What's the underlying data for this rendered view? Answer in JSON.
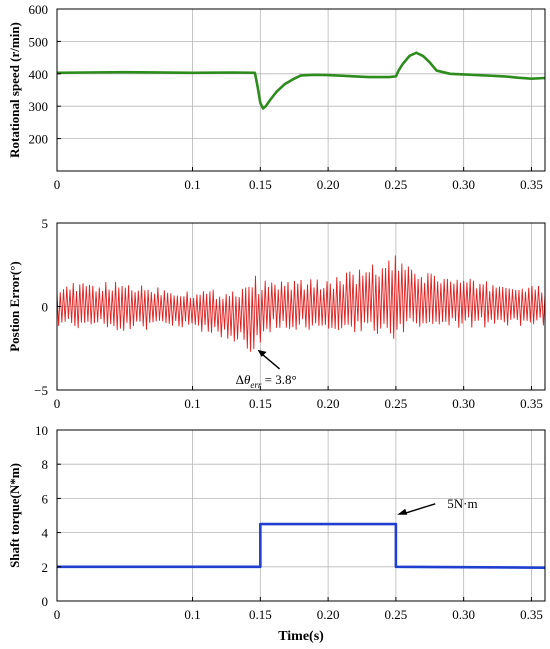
{
  "chart_data": [
    {
      "type": "line",
      "ylabel": "Rotational speed (r/min)",
      "xlabel": "",
      "xlim": [
        0,
        0.36
      ],
      "ylim": [
        100,
        600
      ],
      "xticks": [
        "0",
        "0.1",
        "0.15",
        "0.20",
        "0.25",
        "0.30",
        "0.35"
      ],
      "xtick_values": [
        0,
        0.1,
        0.15,
        0.2,
        0.25,
        0.3,
        0.35
      ],
      "yticks": [
        "200",
        "300",
        "400",
        "500",
        "600"
      ],
      "ytick_values": [
        200,
        300,
        400,
        500,
        600
      ],
      "grid": true,
      "color": "#2e8b1e",
      "series": [
        {
          "x": [
            0,
            0.02,
            0.05,
            0.1,
            0.13,
            0.146,
            0.148,
            0.15,
            0.152,
            0.154,
            0.157,
            0.162,
            0.168,
            0.175,
            0.18,
            0.19,
            0.2,
            0.21,
            0.22,
            0.23,
            0.24,
            0.245,
            0.25,
            0.252,
            0.255,
            0.26,
            0.265,
            0.27,
            0.275,
            0.28,
            0.29,
            0.3,
            0.31,
            0.32,
            0.33,
            0.34,
            0.35,
            0.36
          ],
          "values": [
            403,
            404,
            405,
            403,
            404,
            403,
            360,
            310,
            293,
            300,
            318,
            345,
            368,
            385,
            395,
            397,
            396,
            394,
            392,
            390,
            390,
            390,
            392,
            410,
            430,
            455,
            465,
            455,
            435,
            410,
            400,
            398,
            396,
            394,
            392,
            388,
            385,
            387
          ]
        }
      ]
    },
    {
      "type": "line",
      "ylabel": "Postion Error(°)",
      "xlabel": "",
      "xlim": [
        0,
        0.36
      ],
      "ylim": [
        -5,
        5
      ],
      "xticks": [
        "0",
        "0.1",
        "0.15",
        "0.20",
        "0.25",
        "0.30",
        "0.35"
      ],
      "xtick_values": [
        0,
        0.1,
        0.15,
        0.2,
        0.25,
        0.3,
        0.35
      ],
      "yticks": [
        "−5",
        "0",
        "5"
      ],
      "ytick_values": [
        -5,
        0,
        5
      ],
      "grid": true,
      "color": "#e02020",
      "oscillation": {
        "x_step": 0.0012,
        "amplitude_x": [
          0,
          0.05,
          0.1,
          0.13,
          0.145,
          0.15,
          0.16,
          0.2,
          0.24,
          0.25,
          0.26,
          0.3,
          0.36
        ],
        "amplitude": [
          1.3,
          1.5,
          1.2,
          1.6,
          2.4,
          2.0,
          1.5,
          1.6,
          2.3,
          2.6,
          1.9,
          1.5,
          1.2
        ],
        "offset_x": [
          0,
          0.05,
          0.1,
          0.13,
          0.15,
          0.16,
          0.2,
          0.25,
          0.3,
          0.36
        ],
        "offset": [
          0.1,
          0.0,
          -0.2,
          -0.5,
          -0.4,
          0.1,
          0.1,
          0.5,
          0.2,
          0.0
        ]
      },
      "annotation": {
        "text_delta": "Δ",
        "text_theta": "θ",
        "text_sub": "err",
        "text_value": " = 3.8°",
        "point": [
          0.148,
          -2.6
        ]
      }
    },
    {
      "type": "line",
      "ylabel": "Shaft torque(N*m)",
      "xlabel": "Time(s)",
      "xlim": [
        0,
        0.36
      ],
      "ylim": [
        0,
        10
      ],
      "xticks": [
        "0",
        "0.1",
        "0.15",
        "0.20",
        "0.25",
        "0.30",
        "0.35"
      ],
      "xtick_values": [
        0,
        0.1,
        0.15,
        0.2,
        0.25,
        0.3,
        0.35
      ],
      "yticks": [
        "0",
        "2",
        "4",
        "6",
        "8",
        "10"
      ],
      "ytick_values": [
        0,
        2,
        4,
        6,
        8,
        10
      ],
      "grid": true,
      "color": "#1f3fcf",
      "series": [
        {
          "x": [
            0,
            0.15,
            0.15,
            0.25,
            0.25,
            0.36
          ],
          "values": [
            2.0,
            2.0,
            4.5,
            4.5,
            2.0,
            1.95
          ]
        }
      ],
      "annotation": {
        "text": "5N·m",
        "point": [
          0.251,
          5.1
        ]
      }
    }
  ]
}
